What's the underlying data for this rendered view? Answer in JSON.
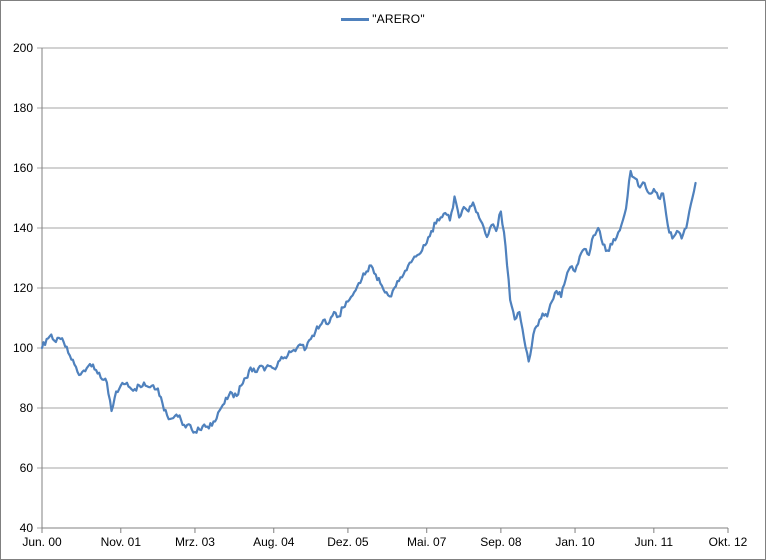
{
  "window": {
    "background": "#ffffff",
    "border_color": "#808080"
  },
  "legend": {
    "label": "\"ARERO\""
  },
  "chart_data": {
    "type": "line",
    "title": "",
    "xlabel": "",
    "ylabel": "",
    "grid": true,
    "legend_position": "top-center",
    "y_min": 40,
    "y_max": 200,
    "y_ticks": [
      40,
      60,
      80,
      100,
      120,
      140,
      160,
      180,
      200
    ],
    "x_max_month": 148,
    "x_tick_labels": [
      "Jun. 00",
      "Nov. 01",
      "Mrz. 03",
      "Aug. 04",
      "Dez. 05",
      "Mai. 07",
      "Sep. 08",
      "Jan. 10",
      "Jun. 11",
      "Okt. 12"
    ],
    "x_tick_months": [
      0,
      17,
      33,
      50,
      66,
      83,
      99,
      115,
      132,
      148
    ],
    "colors": {
      "line": "#4F81BD",
      "gridline": "#A6A6A6",
      "axis": "#808080",
      "text": "#000000"
    },
    "jitter": 1.1,
    "series": [
      {
        "name": "\"ARERO\"",
        "color": "#4F81BD",
        "x_unit": "month_index_from_Jun_2000",
        "values": [
          100,
          103,
          104.5,
          102,
          103,
          100.5,
          97.5,
          94.5,
          91,
          92.5,
          94,
          94.5,
          91.5,
          89.5,
          88.5,
          79,
          85.5,
          87.5,
          88,
          86.8,
          86.3,
          87.5,
          88.5,
          87,
          87.6,
          86.5,
          81.5,
          77.5,
          76.5,
          77.8,
          76,
          73.5,
          74.3,
          72,
          72.8,
          74.5,
          73.2,
          75.5,
          78.5,
          81,
          83,
          85,
          84,
          87.5,
          90,
          93.5,
          92,
          94,
          92.5,
          94,
          93.2,
          95.5,
          96.5,
          97.5,
          99,
          100,
          101,
          100,
          103,
          105.5,
          107.5,
          109.5,
          108.5,
          112,
          110.5,
          113.5,
          115.5,
          117.5,
          120.5,
          123,
          125.5,
          127.5,
          124.5,
          121.5,
          118.5,
          117.2,
          120,
          122.3,
          124.5,
          127.5,
          129.5,
          131,
          132.5,
          135,
          139,
          141.5,
          143.5,
          145,
          142.5,
          150.5,
          143.5,
          147,
          145.5,
          148.5,
          145,
          141.5,
          137,
          141,
          139,
          145.5,
          134,
          116,
          109.5,
          112,
          103,
          95.5,
          104.5,
          107.5,
          111.5,
          110.5,
          115.5,
          119,
          117,
          123,
          127,
          125.5,
          130.5,
          133,
          131,
          137.5,
          140,
          134.5,
          132.5,
          134.5,
          137,
          141,
          146.5,
          159,
          156.5,
          153.5,
          155,
          151.5,
          153,
          150,
          151.5,
          141,
          136.5,
          139,
          136.5,
          140,
          148,
          155
        ]
      }
    ]
  }
}
